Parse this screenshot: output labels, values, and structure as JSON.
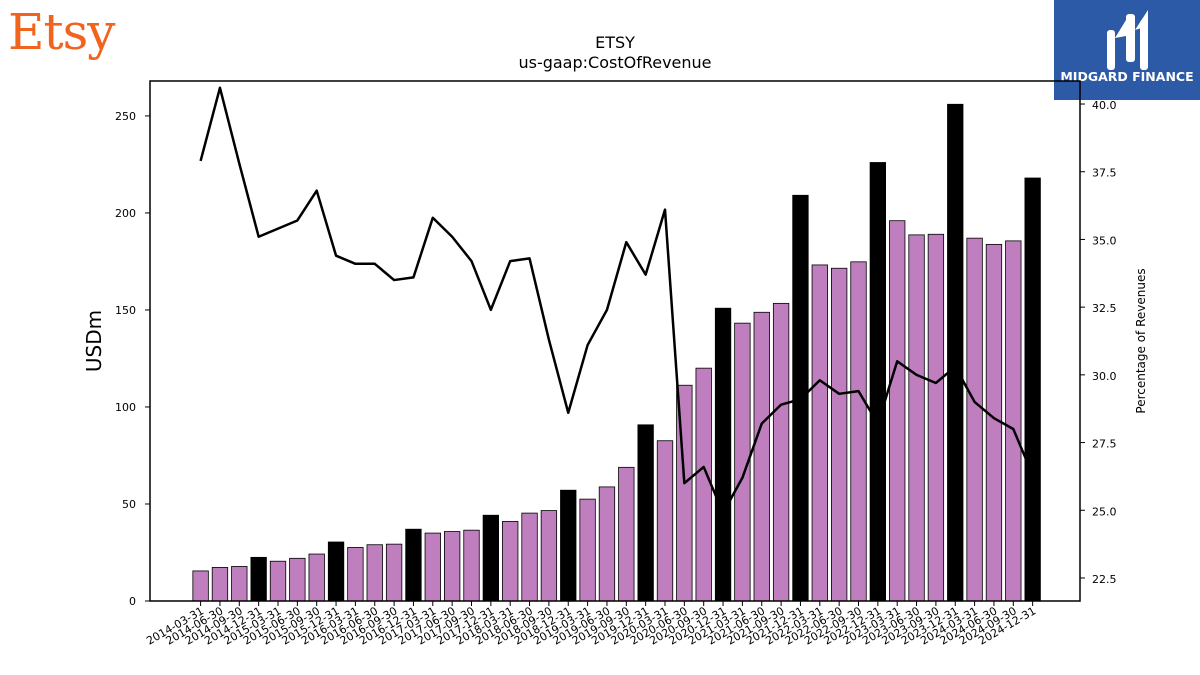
{
  "brand": {
    "logo_text": "Etsy",
    "partner_name": "MIDGARD FINANCE"
  },
  "colors": {
    "bar_normal": "#bf7fbf",
    "bar_highlight": "#000000",
    "line": "#000000",
    "brand_orange": "#f1641e",
    "partner_blue": "#2c5aa6"
  },
  "chart_data": {
    "type": "bar",
    "title": "ETSY",
    "subtitle": "us-gaap:CostOfRevenue",
    "ylabel": "USDm",
    "y2label": "Percentage of Revenues",
    "ylim": [
      0,
      268
    ],
    "y2lim": [
      21.65,
      40.85
    ],
    "yticks": [
      0,
      50,
      100,
      150,
      200,
      250
    ],
    "y2ticks": [
      "22.5",
      "25.0",
      "27.5",
      "30.0",
      "32.5",
      "35.0",
      "37.5",
      "40.0"
    ],
    "grid": false,
    "categories": [
      "2014-03-31",
      "2014-06-30",
      "2014-09-30",
      "2014-12-31",
      "2015-03-31",
      "2015-06-30",
      "2015-09-30",
      "2015-12-31",
      "2016-03-31",
      "2016-06-30",
      "2016-09-30",
      "2016-12-31",
      "2017-03-31",
      "2017-06-30",
      "2017-09-30",
      "2017-12-31",
      "2018-03-31",
      "2018-06-30",
      "2018-09-30",
      "2018-12-31",
      "2019-03-31",
      "2019-06-30",
      "2019-09-30",
      "2019-12-31",
      "2020-03-31",
      "2020-06-30",
      "2020-09-30",
      "2020-12-31",
      "2021-03-31",
      "2021-06-30",
      "2021-09-30",
      "2021-12-31",
      "2022-03-31",
      "2022-06-30",
      "2022-09-30",
      "2022-12-31",
      "2023-03-31",
      "2023-06-30",
      "2023-09-30",
      "2023-12-31",
      "2024-03-31",
      "2024-06-30",
      "2024-09-30",
      "2024-12-31"
    ],
    "series": [
      {
        "kind": "bar",
        "axis": "left",
        "values": [
          15.5,
          17.3,
          17.8,
          22.5,
          20.5,
          22.0,
          24.2,
          30.4,
          27.6,
          29.0,
          29.3,
          37.0,
          35.0,
          35.8,
          36.5,
          44.2,
          41.0,
          45.3,
          46.6,
          57.1,
          52.5,
          58.8,
          68.9,
          90.8,
          82.6,
          111.2,
          120.0,
          150.9,
          143.2,
          148.8,
          153.4,
          209.1,
          173.2,
          171.5,
          174.8,
          226.0,
          196.0,
          188.7,
          189.0,
          256.0,
          187.0,
          183.8,
          185.6,
          218.0
        ],
        "highlight": [
          false,
          false,
          false,
          true,
          false,
          false,
          false,
          true,
          false,
          false,
          false,
          true,
          false,
          false,
          false,
          true,
          false,
          false,
          false,
          true,
          false,
          false,
          false,
          true,
          false,
          false,
          false,
          true,
          false,
          false,
          false,
          true,
          false,
          false,
          false,
          true,
          false,
          false,
          false,
          true,
          false,
          false,
          false,
          true
        ]
      },
      {
        "kind": "line",
        "axis": "right",
        "values": [
          37.9,
          40.6,
          37.8,
          35.1,
          35.4,
          35.7,
          36.8,
          34.4,
          34.1,
          34.1,
          33.5,
          33.6,
          35.8,
          35.1,
          34.2,
          32.4,
          34.2,
          34.3,
          31.3,
          28.6,
          31.1,
          32.4,
          34.9,
          33.7,
          36.1,
          26.0,
          26.6,
          24.9,
          26.2,
          28.2,
          28.9,
          29.1,
          29.8,
          29.3,
          29.4,
          28.2,
          30.5,
          30.0,
          29.7,
          30.3,
          29.0,
          28.4,
          28.0,
          26.3
        ]
      }
    ]
  }
}
